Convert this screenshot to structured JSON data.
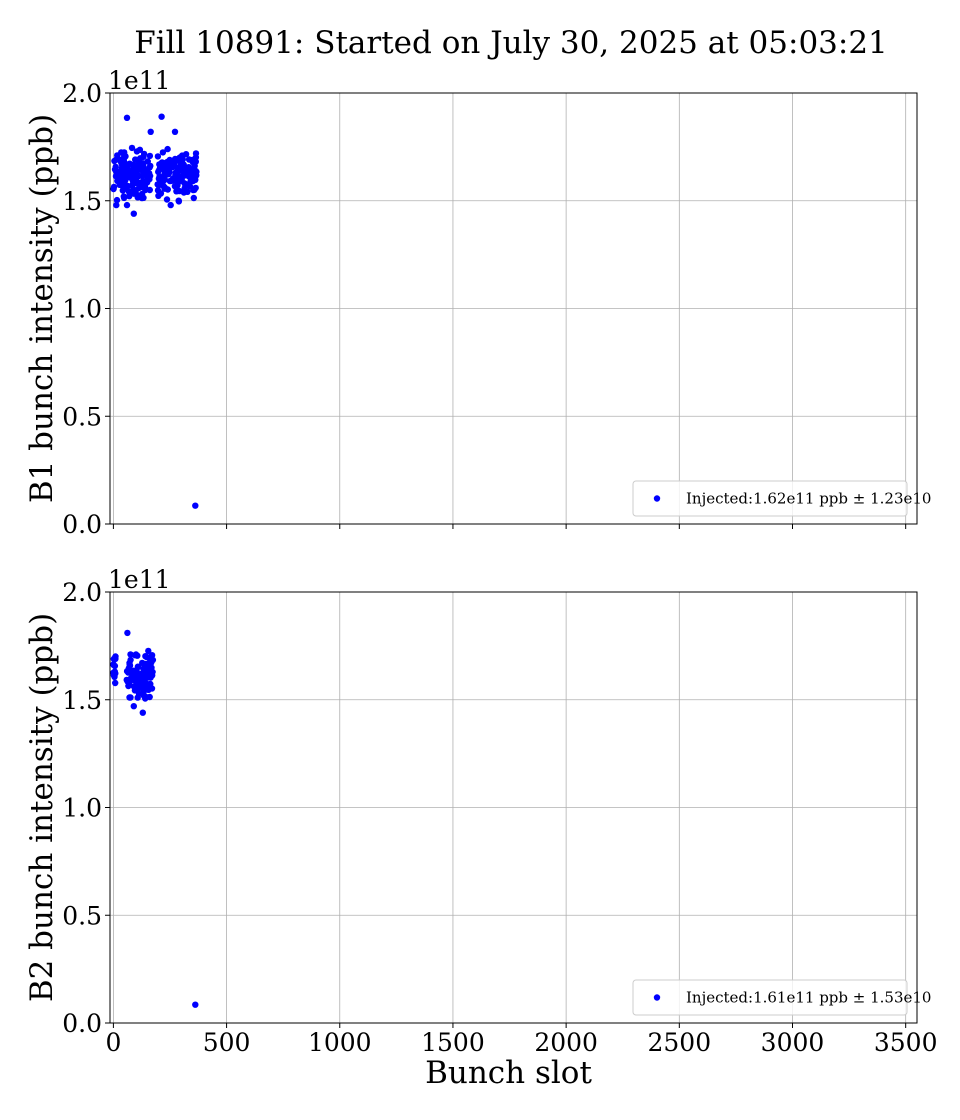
{
  "figure": {
    "title": "Fill 10891: Started on July 30, 2025 at 05:03:21"
  },
  "chart_data": [
    {
      "type": "scatter",
      "xlabel": "",
      "ylabel": "B1 bunch intensity (ppb)",
      "y_offset_label": "1e11",
      "xlim": [
        -15,
        3550
      ],
      "ylim": [
        0,
        200000000000.0
      ],
      "x_ticks": [
        0,
        500,
        1000,
        1500,
        2000,
        2500,
        3000,
        3500
      ],
      "x_tick_labels_visible": false,
      "y_ticks": [
        0,
        50000000000.0,
        100000000000.0,
        150000000000.0,
        200000000000.0
      ],
      "y_tick_labels": [
        "0.0",
        "0.5",
        "1.0",
        "1.5",
        "2.0"
      ],
      "grid": true,
      "legend_position": "lower-right",
      "color": "#0000ff",
      "series": [
        {
          "name": "Injected:1.62e11 ppb ± 1.23e10",
          "clusters": [
            {
              "x_start": 0,
              "x_end": 165,
              "y_mean": 162000000000.0,
              "y_spread": 6500000000.0,
              "count": 150
            },
            {
              "x_start": 195,
              "x_end": 370,
              "y_mean": 162500000000.0,
              "y_spread": 6200000000.0,
              "count": 155
            }
          ],
          "points": [
            {
              "x": 60,
              "y": 188500000000.0
            },
            {
              "x": 213,
              "y": 189000000000.0
            },
            {
              "x": 165,
              "y": 182000000000.0
            },
            {
              "x": 272,
              "y": 182000000000.0
            },
            {
              "x": 90,
              "y": 144000000000.0
            },
            {
              "x": 13,
              "y": 148000000000.0
            },
            {
              "x": 60,
              "y": 148000000000.0
            },
            {
              "x": 253,
              "y": 148000000000.0
            },
            {
              "x": 362,
              "y": 8500000000.0
            }
          ]
        }
      ]
    },
    {
      "type": "scatter",
      "xlabel": "Bunch slot",
      "ylabel": "B2 bunch intensity (ppb)",
      "y_offset_label": "1e11",
      "xlim": [
        -15,
        3550
      ],
      "ylim": [
        0,
        200000000000.0
      ],
      "x_ticks": [
        0,
        500,
        1000,
        1500,
        2000,
        2500,
        3000,
        3500
      ],
      "x_tick_labels": [
        "0",
        "500",
        "1000",
        "1500",
        "2000",
        "2500",
        "3000",
        "3500"
      ],
      "y_ticks": [
        0,
        50000000000.0,
        100000000000.0,
        150000000000.0,
        200000000000.0
      ],
      "y_tick_labels": [
        "0.0",
        "0.5",
        "1.0",
        "1.5",
        "2.0"
      ],
      "grid": true,
      "legend_position": "lower-right",
      "color": "#0000ff",
      "series": [
        {
          "name": "Injected:1.61e11 ppb ± 1.53e10",
          "clusters": [
            {
              "x_start": 0,
              "x_end": 10,
              "y_mean": 166500000000.0,
              "y_spread": 4500000000.0,
              "count": 14
            },
            {
              "x_start": 55,
              "x_end": 175,
              "y_mean": 161500000000.0,
              "y_spread": 6000000000.0,
              "count": 110
            }
          ],
          "points": [
            {
              "x": 62,
              "y": 181000000000.0
            },
            {
              "x": 90,
              "y": 147000000000.0
            },
            {
              "x": 130,
              "y": 144000000000.0
            },
            {
              "x": 362,
              "y": 8500000000.0
            }
          ]
        }
      ]
    }
  ]
}
